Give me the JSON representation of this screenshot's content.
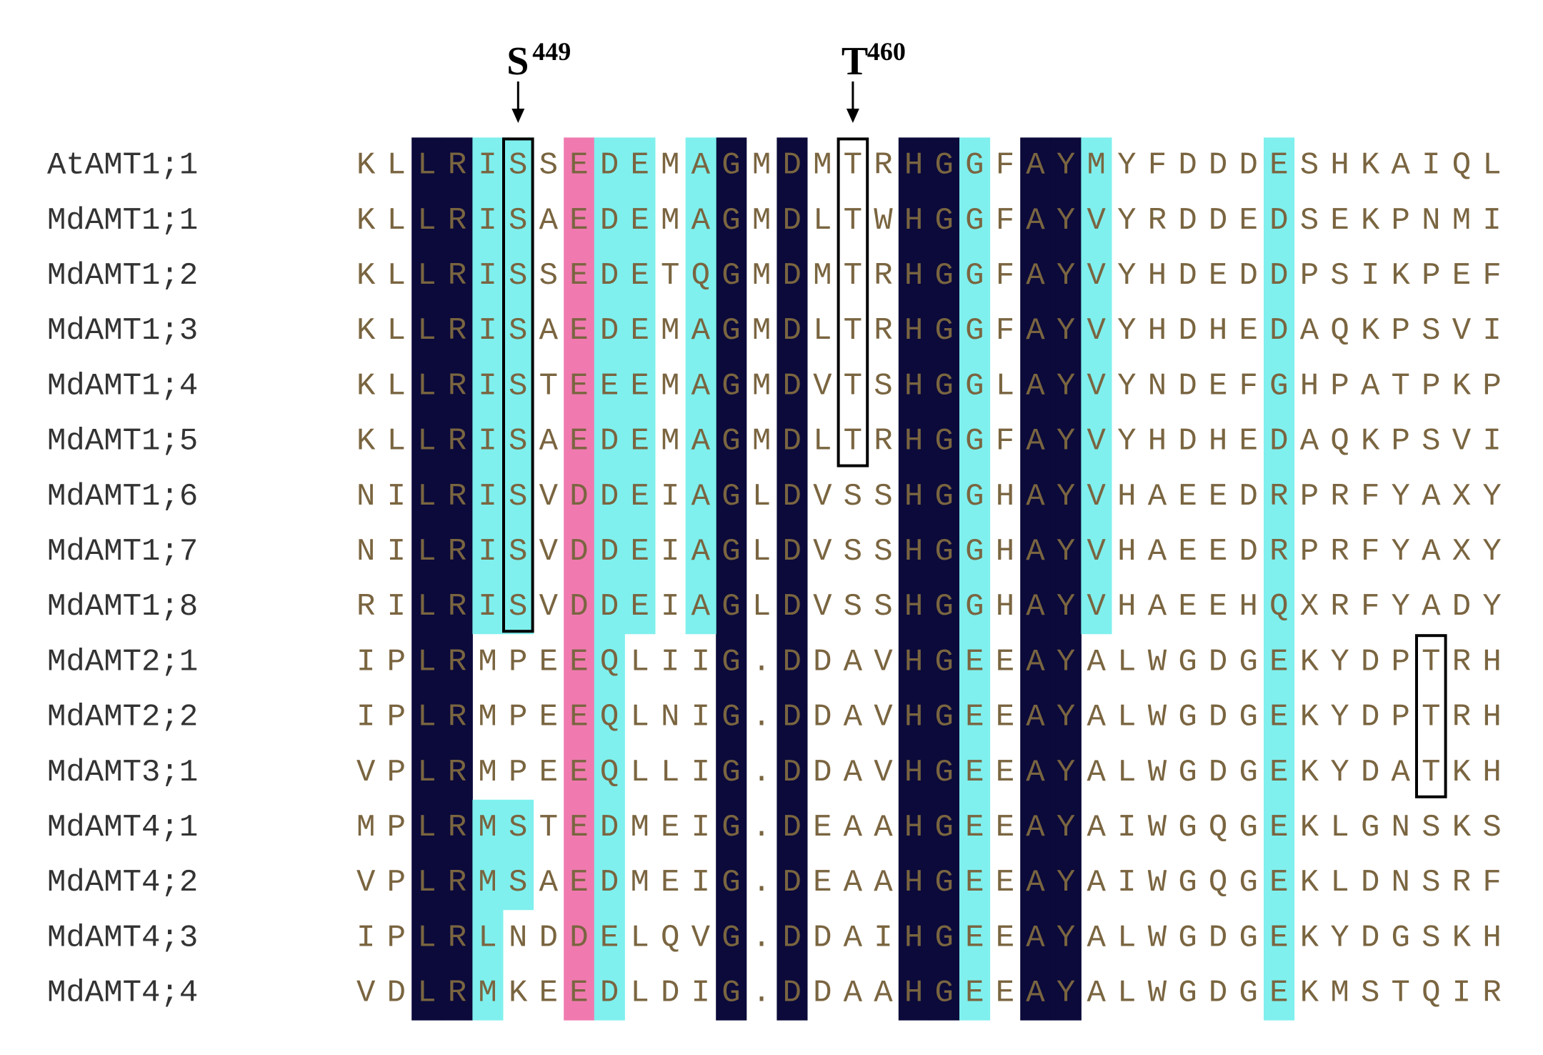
{
  "annotations": [
    {
      "residue": "S",
      "position": 449
    },
    {
      "residue": "T",
      "position": 460
    }
  ],
  "alignment": [
    {
      "name": "AtAMT1;1",
      "sequence": "KLLRISSEDEMAGMDMTRHGGFAYMYFDDDESHKAIQL"
    },
    {
      "name": "MdAMT1;1",
      "sequence": "KLLRISAEDEMAGMDLTWHGGFAYVYRDDEDSEKPNMI"
    },
    {
      "name": "MdAMT1;2",
      "sequence": "KLLRISSEDETQGMDMTRHGGFAYVYHDEDDPSIKPEF"
    },
    {
      "name": "MdAMT1;3",
      "sequence": "KLLRISAEDEMAGMDLTRHGGFAYVYHDHEDAQKPSVI"
    },
    {
      "name": "MdAMT1;4",
      "sequence": "KLLRISTEEEMAGMDVTSHGGLAYVYNDEFGHPATPKP"
    },
    {
      "name": "MdAMT1;5",
      "sequence": "KLLRISAEDEMAGMDLTRHGGFAYVYHDHEDAQKPSVI"
    },
    {
      "name": "MdAMT1;6",
      "sequence": "NILRISVDDEIAGLDVSSHGGHAYVHAEEDRPRFYAXY"
    },
    {
      "name": "MdAMT1;7",
      "sequence": "NILRISVDDEIAGLDVSSHGGHAYVHAEEDRPRFYAXY"
    },
    {
      "name": "MdAMT1;8",
      "sequence": "RILRISVDDEIAGLDVSSHGGHAYVHAEEHQXRFYADY"
    },
    {
      "name": "MdAMT2;1",
      "sequence": "IPLRMPEEQLIIG.DDAVHGEEAYALWGDGEKYDPTRH"
    },
    {
      "name": "MdAMT2;2",
      "sequence": "IPLRMPEEQLNIG.DDAVHGEEAYALWGDGEKYDPTRH"
    },
    {
      "name": "MdAMT3;1",
      "sequence": "VPLRMPEEQLLIG.DDAVHGEEAYALWGDGEKYDATKH"
    },
    {
      "name": "MdAMT4;1",
      "sequence": "MPLRMSTEDMEIG.DEAAHGEEAYAIWGQGEKLGNSKS"
    },
    {
      "name": "MdAMT4;2",
      "sequence": "VPLRMSAEDMEIG.DEAAHGEEAYAIWGQGEKLDNSRF"
    },
    {
      "name": "MdAMT4;3",
      "sequence": "IPLRLNDDELQVG.DDAIHGEEAYALWGDGEKYDGSKH"
    },
    {
      "name": "MdAMT4;4",
      "sequence": "VDLRMKEEDLDIG.DDAAHGEEAYALWGDGEKMSTQIR"
    }
  ]
}
